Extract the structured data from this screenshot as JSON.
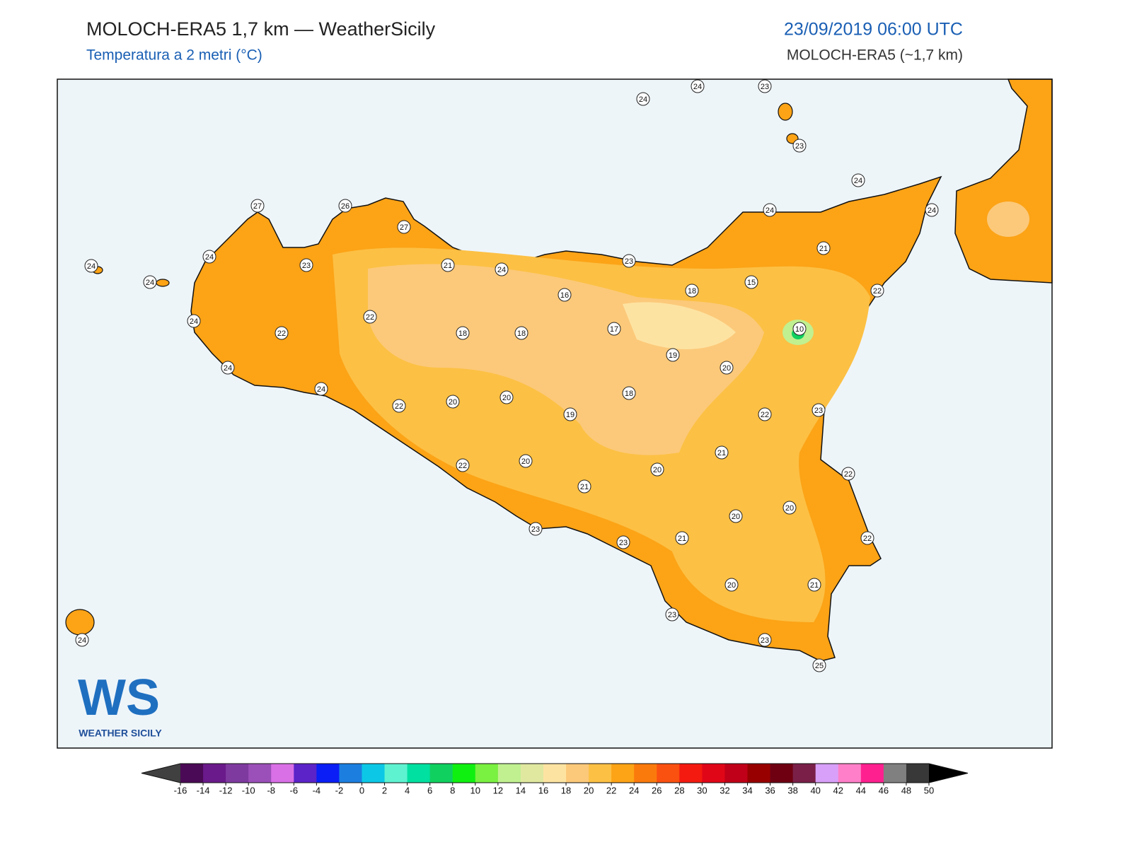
{
  "header": {
    "title": "MOLOCH-ERA5 1,7 km — WeatherSicily",
    "subtitle": "Temperatura a 2 metri (°C)",
    "date": "23/09/2019 06:00 UTC",
    "model": "MOLOCH-ERA5 (~1,7 km)"
  },
  "stations": [
    24,
    24,
    23,
    23,
    24,
    24,
    24,
    27,
    26,
    27,
    24,
    24,
    24,
    23,
    21,
    24,
    23,
    21,
    18,
    15,
    22,
    16,
    22,
    24,
    22,
    18,
    18,
    17,
    10,
    19,
    20,
    24,
    24,
    22,
    20,
    20,
    19,
    18,
    22,
    23,
    21,
    22,
    20,
    20,
    22,
    21,
    20,
    20,
    22,
    23,
    23,
    21,
    20,
    21,
    23,
    23,
    25,
    24
  ],
  "colorbar": {
    "ticks": [
      -16,
      -14,
      -12,
      -10,
      -8,
      -6,
      -4,
      -2,
      0,
      2,
      4,
      6,
      8,
      10,
      12,
      14,
      16,
      18,
      20,
      22,
      24,
      26,
      28,
      30,
      32,
      34,
      36,
      38,
      40,
      42,
      44,
      46,
      48,
      50
    ],
    "colors": [
      "#4b0a55",
      "#6a1a8a",
      "#7f3aa0",
      "#9b4fb8",
      "#d970e6",
      "#5b23c8",
      "#0a1ef5",
      "#1c7fe0",
      "#0cc8e6",
      "#5ef2d0",
      "#00e0a0",
      "#10d060",
      "#10f010",
      "#7af040",
      "#c0f090",
      "#e0e8a0",
      "#fde3a2",
      "#fcc97a",
      "#fcc044",
      "#fca316",
      "#fb7a0c",
      "#fa5010",
      "#f41a10",
      "#e00618",
      "#c00018",
      "#980000",
      "#6e0012",
      "#7a2048",
      "#d8a0f8",
      "#ff80c8",
      "#ff2090",
      "#808080",
      "#383838"
    ],
    "under": "#404040",
    "over": "#000000"
  },
  "logo": {
    "text": "WS",
    "caption": "WEATHER SICILY"
  }
}
